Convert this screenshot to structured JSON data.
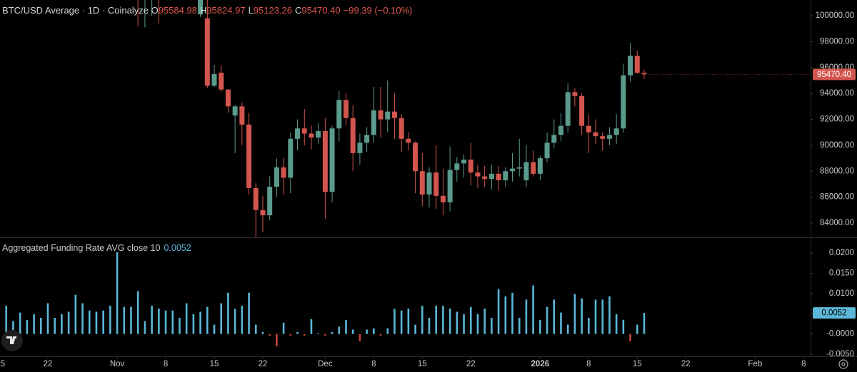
{
  "chart_data": [
    {
      "type": "candlestick",
      "title": "BTC/USD Average · 1D · Coinalyze",
      "ohlc_keys": [
        "O",
        "H",
        "L",
        "C"
      ],
      "last_labels": {
        "open": "95584.98",
        "high": "95824.97",
        "low": "95123.26",
        "close": "95470.40"
      },
      "change_label": "−99.39 (−0.10%)",
      "x": [
        20,
        21,
        22,
        23,
        29,
        30,
        31,
        32,
        33,
        34,
        35,
        36,
        37,
        38,
        39,
        40,
        41,
        42,
        43,
        44,
        45,
        46,
        47,
        48,
        49,
        50,
        51,
        52,
        53,
        54,
        55,
        56,
        57,
        58,
        59,
        60,
        61,
        62,
        63,
        64,
        65,
        66,
        67,
        68,
        69,
        70,
        71,
        72,
        73,
        74,
        75,
        76,
        77,
        78,
        79,
        80,
        81,
        82,
        83,
        84,
        85,
        86,
        87,
        88,
        89,
        90,
        91,
        92,
        93
      ],
      "open": [
        102500,
        101800,
        102300,
        103300,
        100100,
        99800,
        94600,
        95600,
        94300,
        92300,
        93000,
        91600,
        86700,
        85000,
        84600,
        86800,
        88300,
        87500,
        90500,
        91300,
        90900,
        90600,
        91100,
        86400,
        91300,
        93500,
        92100,
        89400,
        90200,
        90800,
        92700,
        92000,
        92600,
        92100,
        90500,
        90200,
        88000,
        86200,
        87900,
        86100,
        85600,
        88100,
        88600,
        88900,
        87900,
        87600,
        87400,
        87800,
        87300,
        88000,
        88200,
        87300,
        88700,
        87800,
        89000,
        90200,
        90800,
        91500,
        94100,
        93800,
        91500,
        91000,
        90700,
        90500,
        90800,
        91300,
        95400,
        96900,
        95584.98
      ],
      "high": [
        104000,
        103500,
        104500,
        105000,
        102000,
        101400,
        96200,
        96200,
        94300,
        93100,
        93300,
        92500,
        87100,
        86100,
        87600,
        89000,
        89000,
        91000,
        92000,
        92800,
        91500,
        91700,
        92100,
        91500,
        94200,
        94000,
        93100,
        90900,
        91400,
        94500,
        94500,
        95000,
        94000,
        92400,
        91000,
        90300,
        89400,
        88300,
        90000,
        88200,
        89900,
        89100,
        89300,
        90200,
        88500,
        88400,
        88500,
        88400,
        88300,
        89400,
        90500,
        90000,
        89600,
        89200,
        91000,
        92000,
        92500,
        94800,
        94400,
        94000,
        92400,
        92000,
        91000,
        91400,
        92400,
        96300,
        97900,
        97300,
        95824.97
      ],
      "low": [
        99200,
        99100,
        100000,
        99400,
        99900,
        94400,
        94500,
        94100,
        92500,
        89400,
        90000,
        86200,
        82900,
        83300,
        84200,
        86000,
        86200,
        86300,
        89600,
        90000,
        89700,
        90100,
        84300,
        85600,
        90300,
        91500,
        88000,
        88500,
        89500,
        90200,
        90600,
        91000,
        90500,
        89500,
        89600,
        86300,
        85300,
        85200,
        85100,
        84600,
        84900,
        87200,
        87500,
        86900,
        86700,
        86800,
        86600,
        86500,
        86800,
        87200,
        87600,
        86800,
        87600,
        87300,
        88700,
        89800,
        90300,
        91000,
        93000,
        90800,
        89400,
        90100,
        89600,
        90000,
        90100,
        91000,
        94900,
        95500,
        95123.26
      ],
      "close": [
        101800,
        102300,
        103300,
        101800,
        101500,
        94600,
        95500,
        94300,
        93000,
        93000,
        91600,
        86700,
        85000,
        84600,
        86800,
        88300,
        87500,
        90500,
        91300,
        90900,
        90600,
        91100,
        86400,
        91300,
        93500,
        92100,
        89400,
        90200,
        90800,
        92700,
        92000,
        92600,
        92100,
        90500,
        90200,
        88000,
        86200,
        87900,
        86100,
        85600,
        88100,
        88600,
        88900,
        87900,
        87600,
        87400,
        87800,
        87300,
        88000,
        88200,
        88300,
        88700,
        87800,
        89000,
        90200,
        90800,
        91500,
        94100,
        93800,
        91500,
        91000,
        90700,
        90500,
        90800,
        91300,
        95400,
        96900,
        95600,
        95470.4
      ],
      "up_color": "#5a9b8c",
      "down_color": "#d3564e",
      "xlim": [
        0.1,
        117
      ],
      "ylim": [
        82900,
        101210
      ],
      "yticks": [
        {
          "value": 84000,
          "label": "84000.00"
        },
        {
          "value": 86000,
          "label": "86000.00"
        },
        {
          "value": 88000,
          "label": "88000.00"
        },
        {
          "value": 90000,
          "label": "90000.00"
        },
        {
          "value": 92000,
          "label": "92000.00"
        },
        {
          "value": 94000,
          "label": "94000.00"
        },
        {
          "value": 96000,
          "label": "96000.00"
        },
        {
          "value": 98000,
          "label": "98000.00"
        },
        {
          "value": 100000,
          "label": "100000.00"
        }
      ]
    },
    {
      "type": "bar",
      "title": "Aggregated Funding Rate AVG close 10",
      "x": [
        1,
        2,
        3,
        4,
        5,
        6,
        7,
        8,
        9,
        10,
        11,
        12,
        13,
        14,
        15,
        16,
        17,
        18,
        19,
        20,
        21,
        22,
        23,
        24,
        25,
        26,
        27,
        28,
        29,
        30,
        31,
        32,
        33,
        34,
        35,
        36,
        37,
        38,
        39,
        40,
        41,
        42,
        43,
        44,
        45,
        46,
        47,
        48,
        49,
        50,
        51,
        52,
        53,
        54,
        55,
        56,
        57,
        58,
        59,
        60,
        61,
        62,
        63,
        64,
        65,
        66,
        67,
        68,
        69,
        70,
        71,
        72,
        73,
        74,
        75,
        76,
        77,
        78,
        79,
        80,
        81,
        82,
        83,
        84,
        85,
        86,
        87,
        88,
        89,
        90,
        91,
        92,
        93
      ],
      "values": [
        0.007,
        0.0032,
        0.0053,
        0.0035,
        0.0049,
        0.004,
        0.0076,
        0.004,
        0.0049,
        0.0055,
        0.0097,
        0.0076,
        0.0058,
        0.0055,
        0.0058,
        0.007,
        0.0202,
        0.0067,
        0.0067,
        0.0106,
        0.0032,
        0.007,
        0.0063,
        0.0058,
        0.0058,
        0.004,
        0.0076,
        0.0049,
        0.0055,
        0.0067,
        0.0023,
        0.0076,
        0.0102,
        0.0062,
        0.007,
        0.0102,
        0.0023,
        0.0005,
        -0.0004,
        -0.003,
        0.0028,
        -0.0004,
        0.0005,
        -0.0004,
        0.0037,
        0.0002,
        -0.0004,
        0.0005,
        0.0018,
        0.0035,
        0.0011,
        -0.0018,
        0.0011,
        0.0014,
        -0.0004,
        0.0014,
        0.0062,
        0.0058,
        0.0063,
        0.0023,
        0.007,
        0.004,
        0.007,
        0.007,
        0.0063,
        0.0055,
        0.0049,
        0.0067,
        0.0049,
        0.0063,
        0.004,
        0.0111,
        0.0093,
        0.0102,
        0.004,
        0.0085,
        0.012,
        0.0035,
        0.0067,
        0.0085,
        0.0053,
        0.0023,
        0.0099,
        0.0088,
        0.004,
        0.0085,
        0.0085,
        0.0093,
        0.0049,
        0.0035,
        -0.0018,
        0.0023,
        0.0052
      ],
      "color": "#5bb8d8",
      "negative_color": "#c8423c",
      "xlim": [
        0.1,
        117
      ],
      "ylim": [
        -0.0064,
        0.0239
      ],
      "yticks": [
        {
          "value": -0.005,
          "label": "-0.0050"
        },
        {
          "value": 0,
          "label": "-0.0000"
        },
        {
          "value": 0.005,
          "label": "0.0050"
        },
        {
          "value": 0.01,
          "label": "0.0100"
        },
        {
          "value": 0.015,
          "label": "0.0150"
        },
        {
          "value": 0.02,
          "label": "0.0200"
        }
      ],
      "xticks": [
        {
          "value": 0,
          "label": "5"
        },
        {
          "value": 7,
          "label": "22"
        },
        {
          "value": 17,
          "label": "Nov"
        },
        {
          "value": 24,
          "label": "8"
        },
        {
          "value": 31,
          "label": "15"
        },
        {
          "value": 38,
          "label": "22"
        },
        {
          "value": 47,
          "label": "Dec"
        },
        {
          "value": 54,
          "label": "8"
        },
        {
          "value": 61,
          "label": "15"
        },
        {
          "value": 68,
          "label": "22"
        },
        {
          "value": 78,
          "label": "2026"
        },
        {
          "value": 85,
          "label": "8"
        },
        {
          "value": 92,
          "label": "15"
        },
        {
          "value": 99,
          "label": "22"
        },
        {
          "value": 109,
          "label": "Feb"
        },
        {
          "value": 116,
          "label": "8"
        }
      ]
    }
  ]
}
